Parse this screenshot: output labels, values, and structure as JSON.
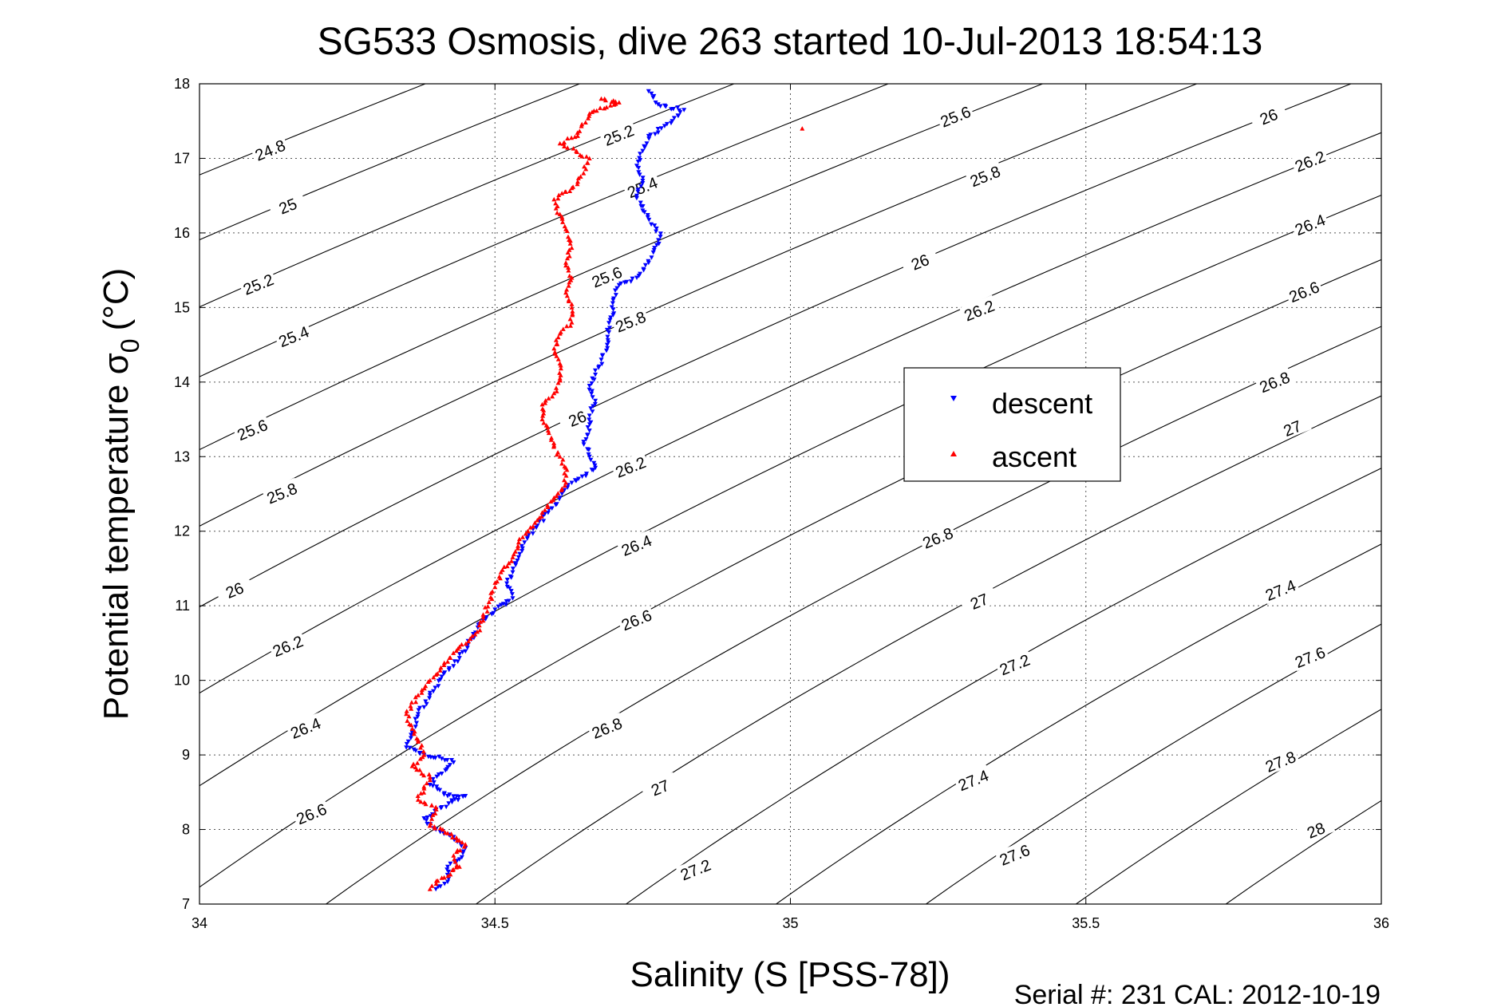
{
  "figure": {
    "title": "SG533 Osmosis, dive 263 started 10-Jul-2013 18:54:13",
    "footer": "Serial #: 231  CAL: 2012-10-19"
  },
  "chart_data": {
    "type": "scatter",
    "title": "SG533 Osmosis, dive 263 started 10-Jul-2013 18:54:13",
    "xlabel": "Salinity (S [PSS-78])",
    "ylabel": "Potential temperature σ₀ (°C)",
    "ylabel_main": "Potential temperature σ",
    "ylabel_sub": "0",
    "ylabel_unit": "(°C)",
    "xlim": [
      34,
      36
    ],
    "ylim": [
      7,
      18
    ],
    "xticks": [
      34,
      34.5,
      35,
      35.5,
      36
    ],
    "xtick_labels": [
      "34",
      "34.5",
      "35",
      "35.5",
      "36"
    ],
    "yticks": [
      7,
      8,
      9,
      10,
      11,
      12,
      13,
      14,
      15,
      16,
      17,
      18
    ],
    "ytick_labels": [
      "7",
      "8",
      "9",
      "10",
      "11",
      "12",
      "13",
      "14",
      "15",
      "16",
      "17",
      "18"
    ],
    "grid": true,
    "legend_position": "upper-right-middle",
    "density_contours": {
      "color": "#000000",
      "levels": [
        24.8,
        25,
        25.2,
        25.4,
        25.6,
        25.8,
        26,
        26.2,
        26.4,
        26.6,
        26.8,
        27,
        27.2,
        27.4,
        27.6,
        27.8,
        28
      ],
      "labels": [
        {
          "text": "24.8",
          "x": 34.12,
          "y": 17.1
        },
        {
          "text": "25",
          "x": 34.15,
          "y": 16.35
        },
        {
          "text": "25.2",
          "x": 34.1,
          "y": 15.3
        },
        {
          "text": "25.4",
          "x": 34.16,
          "y": 14.6
        },
        {
          "text": "25.6",
          "x": 34.09,
          "y": 13.35
        },
        {
          "text": "25.8",
          "x": 34.14,
          "y": 12.5
        },
        {
          "text": "26",
          "x": 34.06,
          "y": 11.2
        },
        {
          "text": "26.2",
          "x": 34.15,
          "y": 10.45
        },
        {
          "text": "26.4",
          "x": 34.18,
          "y": 9.35
        },
        {
          "text": "26.6",
          "x": 34.19,
          "y": 8.2
        },
        {
          "text": "25.2",
          "x": 34.71,
          "y": 17.3
        },
        {
          "text": "25.4",
          "x": 34.75,
          "y": 16.6
        },
        {
          "text": "25.6",
          "x": 34.69,
          "y": 15.4
        },
        {
          "text": "25.8",
          "x": 34.73,
          "y": 14.8
        },
        {
          "text": "26",
          "x": 34.64,
          "y": 13.5
        },
        {
          "text": "26.2",
          "x": 34.73,
          "y": 12.85
        },
        {
          "text": "26.4",
          "x": 34.74,
          "y": 11.8
        },
        {
          "text": "26.6",
          "x": 34.74,
          "y": 10.8
        },
        {
          "text": "26.8",
          "x": 34.69,
          "y": 9.35
        },
        {
          "text": "27",
          "x": 34.78,
          "y": 8.55
        },
        {
          "text": "27.2",
          "x": 34.84,
          "y": 7.45
        },
        {
          "text": "25.6",
          "x": 35.28,
          "y": 17.55
        },
        {
          "text": "25.8",
          "x": 35.33,
          "y": 16.75
        },
        {
          "text": "26",
          "x": 35.22,
          "y": 15.6
        },
        {
          "text": "26.2",
          "x": 35.32,
          "y": 14.95
        },
        {
          "text": "26.8",
          "x": 35.25,
          "y": 11.9
        },
        {
          "text": "27",
          "x": 35.32,
          "y": 11.05
        },
        {
          "text": "27.2",
          "x": 35.38,
          "y": 10.2
        },
        {
          "text": "27.4",
          "x": 35.31,
          "y": 8.65
        },
        {
          "text": "27.6",
          "x": 35.38,
          "y": 7.65
        },
        {
          "text": "26",
          "x": 35.81,
          "y": 17.55
        },
        {
          "text": "26.2",
          "x": 35.88,
          "y": 16.95
        },
        {
          "text": "26.4",
          "x": 35.88,
          "y": 16.1
        },
        {
          "text": "26.6",
          "x": 35.87,
          "y": 15.2
        },
        {
          "text": "26.8",
          "x": 35.82,
          "y": 13.99
        },
        {
          "text": "27",
          "x": 35.85,
          "y": 13.37
        },
        {
          "text": "27.4",
          "x": 35.83,
          "y": 11.2
        },
        {
          "text": "27.6",
          "x": 35.88,
          "y": 10.3
        },
        {
          "text": "27.8",
          "x": 35.83,
          "y": 8.9
        },
        {
          "text": "28",
          "x": 35.89,
          "y": 7.98
        }
      ]
    },
    "series": [
      {
        "name": "descent",
        "color": "#0000ff",
        "marker": "triangle-down",
        "points": [
          [
            34.76,
            17.9
          ],
          [
            34.78,
            17.7
          ],
          [
            34.82,
            17.65
          ],
          [
            34.8,
            17.5
          ],
          [
            34.76,
            17.3
          ],
          [
            34.75,
            17.1
          ],
          [
            34.74,
            16.9
          ],
          [
            34.75,
            16.7
          ],
          [
            34.74,
            16.5
          ],
          [
            34.75,
            16.3
          ],
          [
            34.77,
            16.1
          ],
          [
            34.78,
            15.95
          ],
          [
            34.77,
            15.8
          ],
          [
            34.76,
            15.6
          ],
          [
            34.74,
            15.4
          ],
          [
            34.71,
            15.3
          ],
          [
            34.7,
            15.1
          ],
          [
            34.7,
            14.9
          ],
          [
            34.69,
            14.7
          ],
          [
            34.69,
            14.5
          ],
          [
            34.68,
            14.3
          ],
          [
            34.67,
            14.1
          ],
          [
            34.66,
            13.95
          ],
          [
            34.67,
            13.75
          ],
          [
            34.66,
            13.55
          ],
          [
            34.66,
            13.35
          ],
          [
            34.65,
            13.2
          ],
          [
            34.66,
            13.0
          ],
          [
            34.67,
            12.85
          ],
          [
            34.63,
            12.65
          ],
          [
            34.61,
            12.45
          ],
          [
            34.59,
            12.25
          ],
          [
            34.57,
            12.05
          ],
          [
            34.55,
            11.85
          ],
          [
            34.54,
            11.65
          ],
          [
            34.53,
            11.45
          ],
          [
            34.52,
            11.3
          ],
          [
            34.53,
            11.1
          ],
          [
            34.5,
            10.95
          ],
          [
            34.48,
            10.8
          ],
          [
            34.46,
            10.55
          ],
          [
            34.44,
            10.3
          ],
          [
            34.41,
            10.05
          ],
          [
            34.39,
            9.8
          ],
          [
            34.37,
            9.55
          ],
          [
            34.36,
            9.3
          ],
          [
            34.35,
            9.1
          ],
          [
            34.38,
            9.0
          ],
          [
            34.41,
            8.95
          ],
          [
            34.43,
            8.9
          ],
          [
            34.41,
            8.75
          ],
          [
            34.39,
            8.6
          ],
          [
            34.42,
            8.45
          ],
          [
            34.45,
            8.45
          ],
          [
            34.41,
            8.3
          ],
          [
            34.38,
            8.15
          ],
          [
            34.4,
            8.0
          ],
          [
            34.43,
            7.9
          ],
          [
            34.45,
            7.75
          ],
          [
            34.44,
            7.6
          ],
          [
            34.42,
            7.5
          ],
          [
            34.42,
            7.3
          ],
          [
            34.4,
            7.2
          ]
        ]
      },
      {
        "name": "ascent",
        "color": "#ff0000",
        "marker": "triangle-up",
        "points": [
          [
            34.68,
            17.8
          ],
          [
            34.71,
            17.75
          ],
          [
            34.66,
            17.6
          ],
          [
            34.64,
            17.3
          ],
          [
            34.61,
            17.2
          ],
          [
            34.66,
            17.0
          ],
          [
            34.65,
            16.8
          ],
          [
            34.63,
            16.6
          ],
          [
            34.6,
            16.45
          ],
          [
            34.61,
            16.25
          ],
          [
            34.62,
            16.05
          ],
          [
            34.63,
            15.8
          ],
          [
            34.62,
            15.6
          ],
          [
            34.63,
            15.4
          ],
          [
            34.62,
            15.2
          ],
          [
            34.63,
            15.0
          ],
          [
            34.63,
            14.8
          ],
          [
            34.61,
            14.65
          ],
          [
            34.6,
            14.45
          ],
          [
            34.61,
            14.25
          ],
          [
            34.61,
            14.05
          ],
          [
            34.6,
            13.85
          ],
          [
            34.58,
            13.7
          ],
          [
            34.58,
            13.5
          ],
          [
            34.59,
            13.35
          ],
          [
            34.6,
            13.15
          ],
          [
            34.61,
            13.0
          ],
          [
            34.62,
            12.85
          ],
          [
            34.62,
            12.65
          ],
          [
            34.6,
            12.45
          ],
          [
            34.58,
            12.25
          ],
          [
            34.56,
            12.05
          ],
          [
            34.54,
            11.85
          ],
          [
            34.53,
            11.65
          ],
          [
            34.51,
            11.45
          ],
          [
            34.5,
            11.25
          ],
          [
            34.49,
            11.05
          ],
          [
            34.48,
            10.85
          ],
          [
            34.47,
            10.65
          ],
          [
            34.44,
            10.45
          ],
          [
            34.42,
            10.25
          ],
          [
            34.39,
            10.0
          ],
          [
            34.37,
            9.8
          ],
          [
            34.35,
            9.55
          ],
          [
            34.36,
            9.35
          ],
          [
            34.37,
            9.2
          ],
          [
            34.38,
            9.0
          ],
          [
            34.36,
            8.85
          ],
          [
            34.39,
            8.7
          ],
          [
            34.38,
            8.55
          ],
          [
            34.37,
            8.4
          ],
          [
            34.4,
            8.3
          ],
          [
            34.39,
            8.05
          ],
          [
            34.42,
            7.95
          ],
          [
            34.45,
            7.8
          ],
          [
            34.43,
            7.65
          ],
          [
            34.44,
            7.5
          ],
          [
            34.41,
            7.35
          ],
          [
            34.39,
            7.2
          ],
          [
            35.02,
            17.4
          ]
        ]
      }
    ]
  }
}
